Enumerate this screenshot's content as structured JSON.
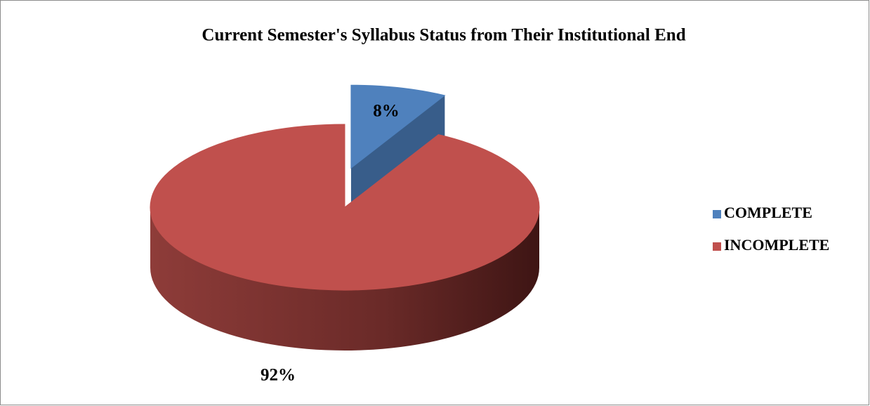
{
  "chart_data": {
    "type": "pie",
    "title": "Current Semester's Syllabus Status from Their Institutional End",
    "categories": [
      "COMPLETE",
      "INCOMPLETE"
    ],
    "values": [
      8,
      92
    ],
    "value_labels": [
      "8%",
      "92%"
    ],
    "colors": [
      "#4f81bd",
      "#c0504d"
    ],
    "legend": "right"
  }
}
